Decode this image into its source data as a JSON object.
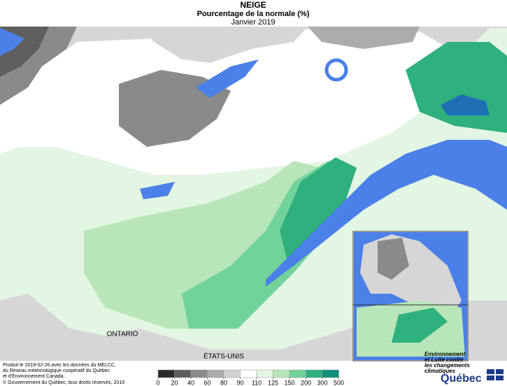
{
  "header": {
    "title": "NEIGE",
    "subtitle": "Pourcentage de la normale (%)",
    "period": "Janvier 2019"
  },
  "map": {
    "labels": [
      "ONTARIO",
      "ÉTATS-UNIS"
    ]
  },
  "legend": {
    "ticks": [
      0,
      20,
      40,
      60,
      80,
      90,
      110,
      125,
      150,
      200,
      300,
      500
    ],
    "colors": [
      "#2b2b2b",
      "#5e5e5e",
      "#8a8a8a",
      "#acacac",
      "#d0d0d0",
      "#ffffff",
      "#e3f5e3",
      "#b8e6b8",
      "#72d39a",
      "#2fb07f",
      "#138f7e"
    ]
  },
  "credits": [
    "Produit le 2019-02-26 avec les données du MELCC,",
    "du Réseau météorologique coopératif du Québec",
    "et d'Environnement Canada.",
    "© Gouvernement du Québec, tous droits réservés, 2019"
  ],
  "logo": {
    "lines": [
      "Environnement",
      "et Lutte contre",
      "les changements",
      "climatiques"
    ],
    "name": "Québec"
  }
}
